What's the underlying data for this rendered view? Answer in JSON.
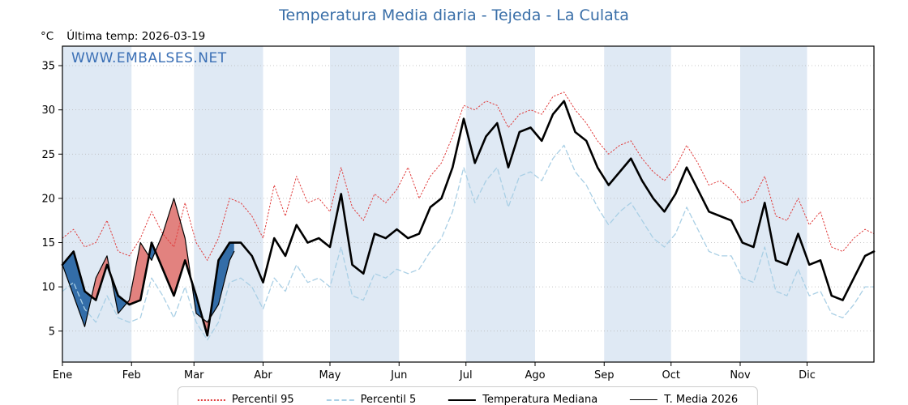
{
  "header": {
    "title": "Temperatura Media diaria - Tejeda - La Culata",
    "unit_label": "°C",
    "last_temp_label": "Última temp: 2026-03-19",
    "watermark": "WWW.EMBALSES.NET",
    "title_color": "#3a6fa8",
    "watermark_color": "#3a6fb5"
  },
  "chart_data": {
    "type": "line",
    "title": "Temperatura Media diaria - Tejeda - La Culata",
    "xlabel": "",
    "ylabel": "°C",
    "ylim": [
      1.5,
      37.2
    ],
    "yticks": [
      5,
      10,
      15,
      20,
      25,
      30,
      35
    ],
    "grid": "horizontal-dotted",
    "legend_position": "bottom",
    "month_labels": [
      "Ene",
      "Feb",
      "Mar",
      "Abr",
      "May",
      "Jun",
      "Jul",
      "Ago",
      "Sep",
      "Oct",
      "Nov",
      "Dic"
    ],
    "month_start_days": [
      1,
      32,
      60,
      91,
      121,
      152,
      182,
      213,
      244,
      274,
      305,
      335
    ],
    "days_in_year": 365,
    "band_color": "#dfe9f4",
    "days": [
      1,
      6,
      11,
      16,
      21,
      26,
      31,
      36,
      41,
      46,
      51,
      56,
      61,
      66,
      71,
      76,
      81,
      86,
      91,
      96,
      101,
      106,
      111,
      116,
      121,
      126,
      131,
      136,
      141,
      146,
      151,
      156,
      161,
      166,
      171,
      176,
      181,
      186,
      191,
      196,
      201,
      206,
      211,
      216,
      221,
      226,
      231,
      236,
      241,
      246,
      251,
      256,
      261,
      266,
      271,
      276,
      281,
      286,
      291,
      296,
      301,
      306,
      311,
      316,
      321,
      326,
      331,
      336,
      341,
      346,
      351,
      356,
      361,
      365
    ],
    "series": [
      {
        "name": "Percentil 95",
        "color": "#e03c3c",
        "style": "dotted",
        "width": 1,
        "values": [
          15.5,
          16.5,
          14.5,
          15,
          17.5,
          14,
          13.5,
          15.5,
          18.5,
          16,
          14.5,
          19.5,
          15,
          13,
          15.5,
          20,
          19.5,
          18,
          15.5,
          21.5,
          18,
          22.5,
          19.5,
          20,
          18.5,
          23.5,
          19,
          17.5,
          20.5,
          19.5,
          21,
          23.5,
          20,
          22.5,
          24,
          27,
          30.5,
          30,
          31,
          30.5,
          28,
          29.5,
          30,
          29.5,
          31.5,
          32,
          30,
          28.5,
          26.5,
          25,
          26,
          26.5,
          24.5,
          23,
          22,
          23.5,
          26,
          24,
          21.5,
          22,
          21,
          19.5,
          20,
          22.5,
          18,
          17.5,
          20,
          17,
          18.5,
          14.5,
          14,
          15.5,
          16.5,
          16
        ]
      },
      {
        "name": "Percentil 5",
        "color": "#a9cfe5",
        "style": "dashed",
        "width": 1.3,
        "values": [
          9.5,
          10.5,
          7.5,
          6,
          9,
          6.5,
          6,
          6.5,
          11,
          9,
          6.5,
          10,
          6,
          4,
          6,
          10.5,
          11,
          10,
          7.5,
          11,
          9.5,
          12.5,
          10.5,
          11,
          10,
          14.5,
          9,
          8.5,
          11.5,
          11,
          12,
          11.5,
          12,
          14,
          15.5,
          18.5,
          23.5,
          19.5,
          22,
          23.5,
          19,
          22.5,
          23,
          22,
          24.5,
          26,
          23,
          21.5,
          19,
          17,
          18.5,
          19.5,
          17.5,
          15.5,
          14.5,
          16,
          19,
          16.5,
          14,
          13.5,
          13.5,
          11,
          10.5,
          14.5,
          9.5,
          9,
          12,
          9,
          9.5,
          7,
          6.5,
          8,
          10,
          10
        ]
      },
      {
        "name": "Temperatura Mediana",
        "color": "#000000",
        "style": "solid",
        "width": 2.6,
        "values": [
          12.5,
          14,
          9.5,
          8.5,
          12.5,
          9,
          8,
          8.5,
          15,
          12,
          9,
          13,
          9,
          4.5,
          13,
          15,
          15,
          13.5,
          10.5,
          15.5,
          13.5,
          17,
          15,
          15.5,
          14.5,
          20.5,
          12.5,
          11.5,
          16,
          15.5,
          16.5,
          15.5,
          16,
          19,
          20,
          23.5,
          29,
          24,
          27,
          28.5,
          23.5,
          27.5,
          28,
          26.5,
          29.5,
          31,
          27.5,
          26.5,
          23.5,
          21.5,
          23,
          24.5,
          22,
          20,
          18.5,
          20.5,
          23.5,
          21,
          18.5,
          18,
          17.5,
          15,
          14.5,
          19.5,
          13,
          12.5,
          16,
          12.5,
          13,
          9,
          8.5,
          11,
          13.5,
          14
        ]
      },
      {
        "name": "T. Media 2026",
        "color": "#000000",
        "style": "solid",
        "width": 1.2,
        "days": [
          1,
          6,
          11,
          16,
          21,
          26,
          31,
          36,
          41,
          46,
          51,
          56,
          61,
          66,
          71,
          76,
          78
        ],
        "values": [
          12.5,
          9,
          5.5,
          11,
          13.5,
          7,
          8.5,
          15,
          13,
          16,
          20,
          15.5,
          7,
          6,
          8,
          13,
          14
        ]
      }
    ],
    "fills": {
      "above_color": "#e2827f",
      "below_color": "#336da8",
      "description": "2026 vs Mediana: red where 2026 above median, blue where below"
    }
  },
  "legend": {
    "items": [
      {
        "label": "Percentil 95"
      },
      {
        "label": "Percentil 5"
      },
      {
        "label": "Temperatura Mediana"
      },
      {
        "label": "T. Media 2026"
      }
    ]
  }
}
